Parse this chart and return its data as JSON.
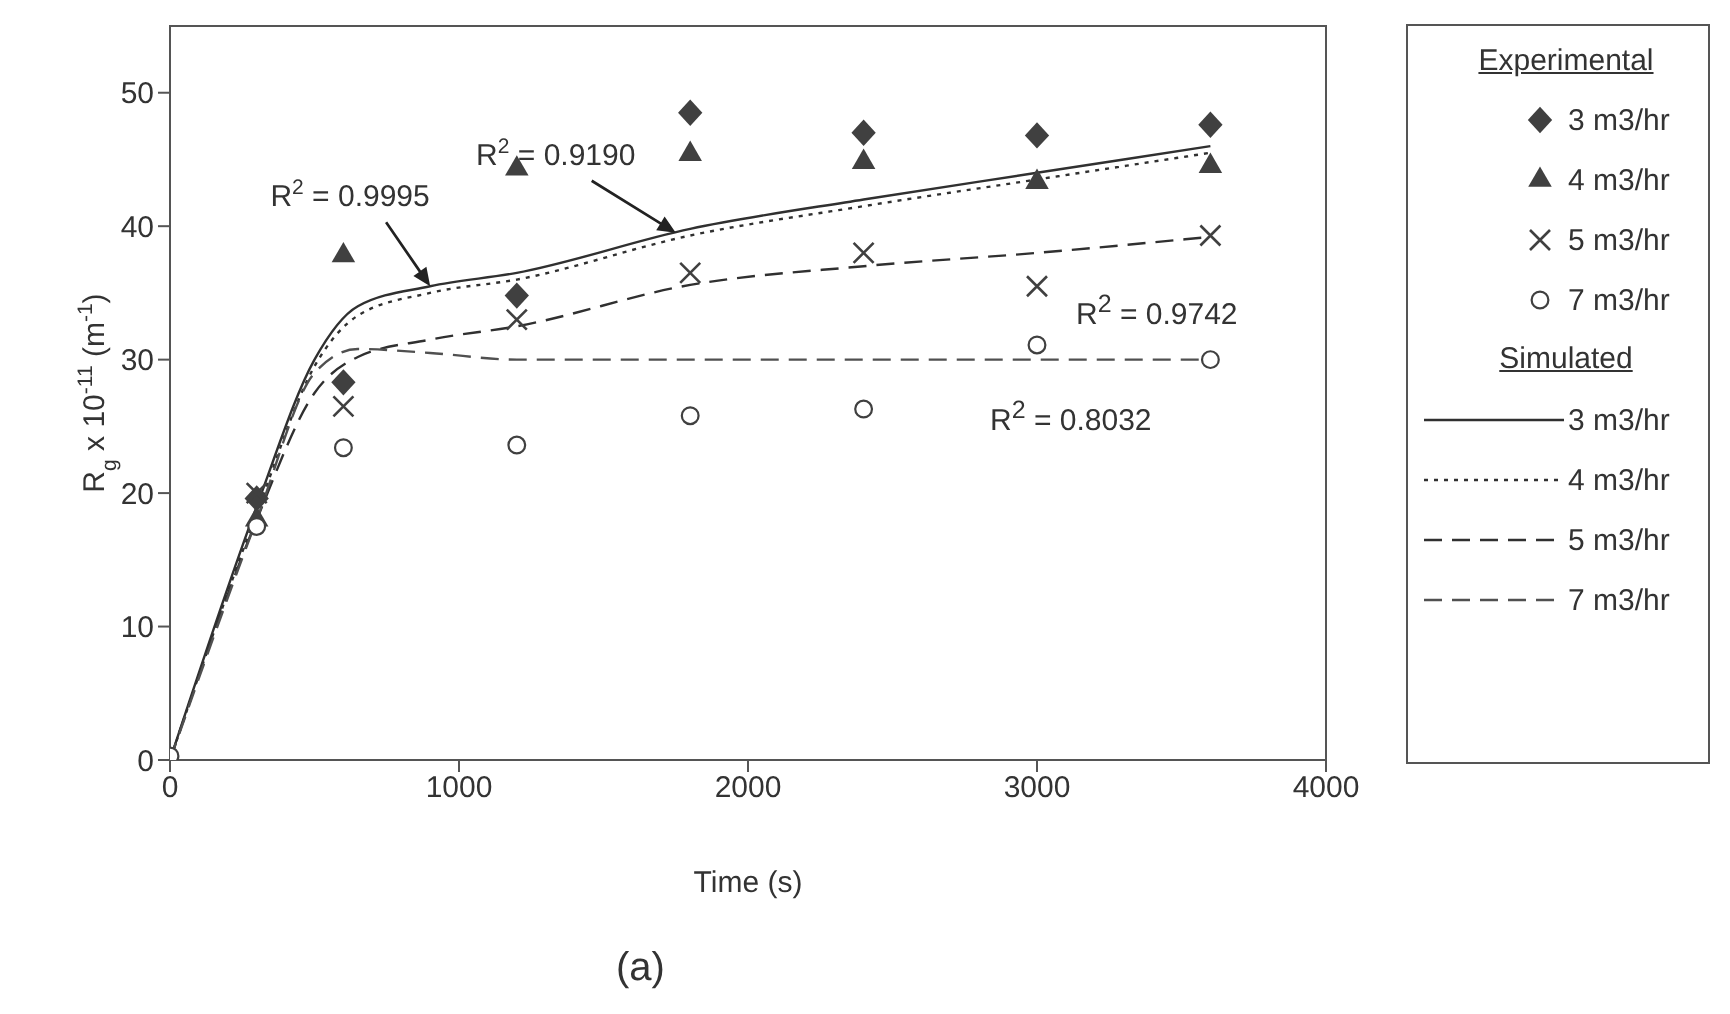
{
  "chart_data": {
    "type": "scatter",
    "xlabel": "Time (s)",
    "ylabel": "R$_{g}$ x 10$^{-11}$ (m$^{-1}$)",
    "xlim": [
      0,
      4000
    ],
    "xticks": [
      0,
      1000,
      2000,
      3000,
      4000
    ],
    "ylim": [
      0,
      55
    ],
    "yticks": [
      0,
      10,
      20,
      30,
      40,
      50
    ],
    "grid": false,
    "legend": "right",
    "series": [
      {
        "name": "3 m3/hr",
        "marker": "diamond",
        "color": "#404040",
        "x": [
          300,
          600,
          1200,
          1800,
          2400,
          3000,
          3600
        ],
        "values": [
          19.6,
          28.3,
          34.8,
          48.5,
          47,
          46.8,
          47.6
        ]
      },
      {
        "name": "4 m3/hr",
        "marker": "triangle",
        "color": "#404040",
        "x": [
          300,
          600,
          1200,
          1800,
          2400,
          3000,
          3600
        ],
        "values": [
          18,
          37.8,
          44.3,
          45.4,
          44.8,
          43.3,
          44.5
        ]
      },
      {
        "name": "5 m3/hr",
        "marker": "cross",
        "color": "#404040",
        "x": [
          300,
          600,
          1200,
          1800,
          2400,
          3000,
          3600
        ],
        "values": [
          20,
          26.5,
          33,
          36.5,
          38,
          35.5,
          39.3
        ]
      },
      {
        "name": "7 m3/hr",
        "marker": "circle",
        "color": "#404040",
        "x": [
          0,
          300,
          600,
          1200,
          1800,
          2400,
          3000,
          3600
        ],
        "values": [
          0.3,
          17.5,
          23.4,
          23.6,
          25.8,
          26.3,
          31.1,
          30
        ]
      },
      {
        "name": "3 m3/hr",
        "type": "line",
        "line_style": "solid",
        "color": "#303030",
        "x": [
          0,
          300,
          500,
          650,
          900,
          1200,
          1800,
          2400,
          3000,
          3600
        ],
        "values": [
          0,
          19,
          30,
          34,
          35.5,
          36.5,
          39.8,
          42,
          44,
          46
        ]
      },
      {
        "name": "4 m3/hr",
        "type": "line",
        "line_style": "dotted",
        "color": "#303030",
        "x": [
          0,
          300,
          500,
          650,
          900,
          1200,
          1800,
          2400,
          3000,
          3600
        ],
        "values": [
          0,
          18.5,
          29.5,
          33.3,
          35,
          36,
          39.3,
          41.5,
          43.5,
          45.5
        ]
      },
      {
        "name": "5 m3/hr",
        "type": "line",
        "line_style": "dashed",
        "color": "#303030",
        "x": [
          0,
          300,
          500,
          650,
          900,
          1200,
          1800,
          2400,
          3000,
          3600
        ],
        "values": [
          0,
          18,
          27.5,
          30.2,
          31.5,
          32.5,
          35.6,
          37,
          38,
          39.2
        ]
      },
      {
        "name": "7 m3/hr",
        "type": "line",
        "line_style": "dashed",
        "color": "#505050",
        "x": [
          0,
          300,
          500,
          650,
          900,
          1200,
          1800,
          2400,
          3000,
          3600
        ],
        "values": [
          0,
          18,
          29,
          30.8,
          30.5,
          30,
          30,
          30,
          30,
          30
        ]
      }
    ],
    "annotations": [
      {
        "text": "R$^{2}$ = 0.9995",
        "x": 900,
        "y": 35.5
      },
      {
        "text": "R$^{2}$ = 0.9190",
        "x": 1750,
        "y": 39.5
      },
      "R$^{2}$ = 0.9742",
      "R$^{2}$ = 0.8032",
      "Experimental",
      "Simulated",
      "(a)"
    ]
  }
}
